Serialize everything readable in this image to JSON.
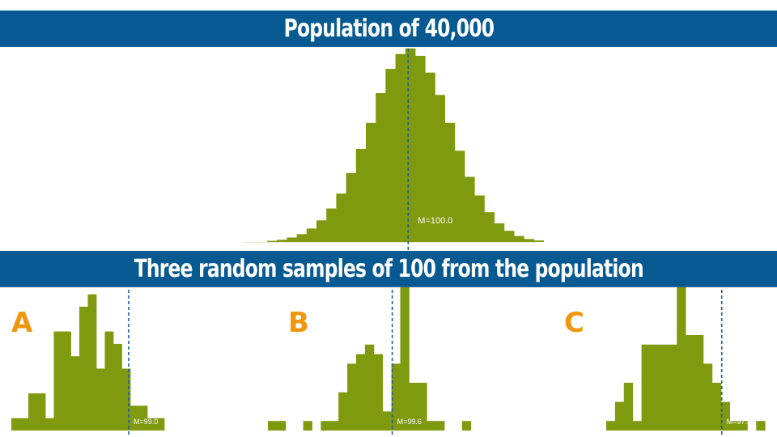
{
  "banners": {
    "top": "Population of 40,000",
    "middle": "Three random samples of 100 from the population"
  },
  "colors": {
    "banner": "#075a91",
    "bar": "#7f9a0e",
    "mean_line": "#1e5aa0",
    "panel_letter": "#f0960f"
  },
  "chart_data": [
    {
      "type": "bar",
      "name": "population",
      "mean_label": "M=100.0",
      "mean": 100.0,
      "bin_start": 70,
      "bin_width": 2.1,
      "values": [
        0.3,
        0.6,
        1.2,
        2.1,
        3.6,
        5.8,
        9.0,
        13.0,
        18.5,
        25.0,
        32.0,
        40.0,
        46.5,
        50.5,
        52.0,
        50.0,
        45.5,
        39.5,
        32.0,
        24.5,
        17.5,
        12.5,
        8.0,
        5.0,
        3.0,
        1.6,
        0.8,
        0.4
      ]
    },
    {
      "type": "bar",
      "name": "sample",
      "panel": "A",
      "mean_label": "M=99.0",
      "mean": 99.0,
      "bin_start": 70,
      "bin_width": 2.1,
      "values": [
        1,
        1,
        3,
        3,
        1,
        8,
        8,
        6,
        10,
        11,
        5,
        8,
        7,
        5,
        2,
        2,
        1,
        1
      ]
    },
    {
      "type": "bar",
      "name": "sample",
      "panel": "B",
      "mean_label": "M=99.6",
      "mean": 99.6,
      "bin_start": 70,
      "bin_width": 2.1,
      "values": [
        1,
        1,
        0,
        0,
        1,
        0,
        1,
        1,
        4,
        7,
        8,
        9,
        8,
        2,
        7,
        15,
        5,
        5,
        1,
        1,
        0,
        0,
        1
      ]
    },
    {
      "type": "bar",
      "name": "sample",
      "panel": "C",
      "mean_label": "M=97.5",
      "mean": 97.5,
      "bin_start": 70,
      "bin_width": 2.1,
      "values": [
        1,
        3,
        5,
        1,
        9,
        9,
        9,
        9,
        15,
        10,
        10,
        7,
        5,
        3,
        1,
        1,
        0,
        1
      ]
    }
  ]
}
